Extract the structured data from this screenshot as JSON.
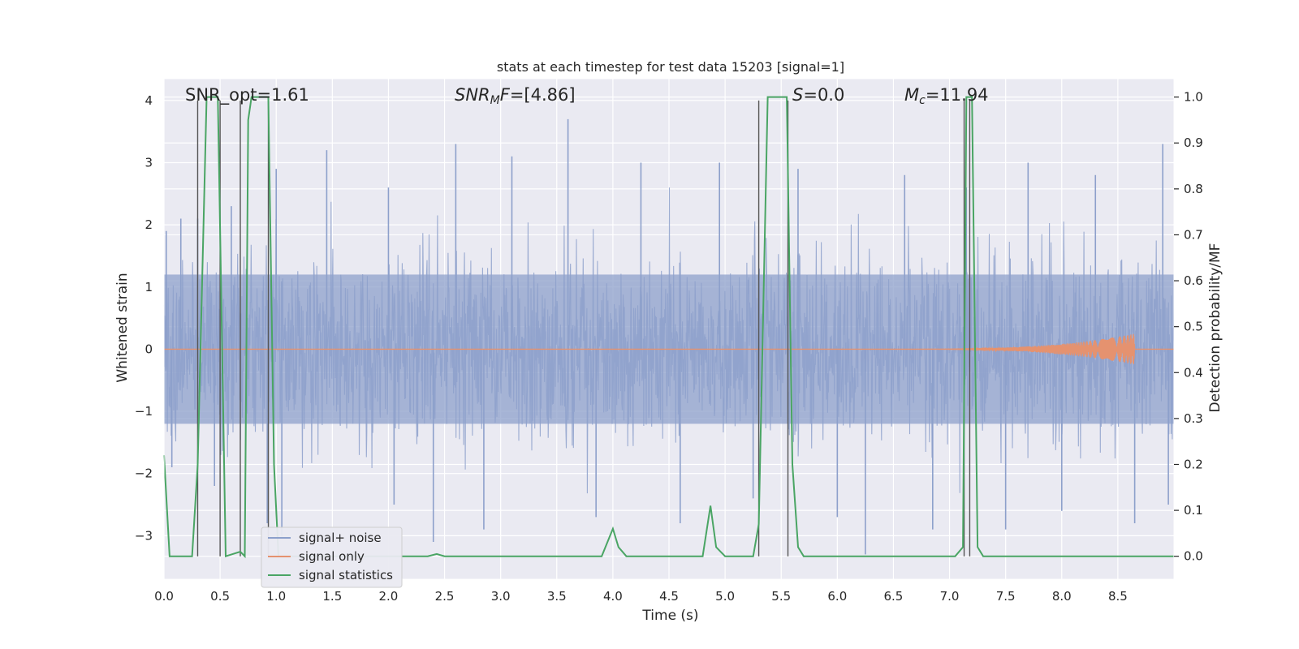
{
  "chart_data": {
    "type": "line",
    "title": "stats at each timestep for test data 15203 [signal=1]",
    "xlabel": "Time (s)",
    "ylabel_left": "Whitened strain",
    "ylabel_right": "Detection probability/MF",
    "xlim": [
      0.0,
      9.0
    ],
    "ylim_left": [
      -3.7,
      4.35
    ],
    "ylim_right": [
      -0.05,
      1.04
    ],
    "x_ticks": [
      "0.0",
      "0.5",
      "1.0",
      "1.5",
      "2.0",
      "2.5",
      "3.0",
      "3.5",
      "4.0",
      "4.5",
      "5.0",
      "5.5",
      "6.0",
      "6.5",
      "7.0",
      "7.5",
      "8.0",
      "8.5"
    ],
    "y_left_ticks": [
      "−3",
      "−2",
      "−1",
      "0",
      "1",
      "2",
      "3",
      "4"
    ],
    "y_right_ticks": [
      "0.0",
      "0.1",
      "0.2",
      "0.3",
      "0.4",
      "0.5",
      "0.6",
      "0.7",
      "0.8",
      "0.9",
      "1.0"
    ],
    "grid": true,
    "legend_position": "lower-left",
    "annotations": {
      "snr_opt": "SNR_opt=1.61",
      "snr_mf": "=[4.86]",
      "s": "=0.0",
      "mc": "=11.94"
    },
    "series": [
      {
        "name": "signal+ noise",
        "color": "#8da0cb",
        "description_axis": "left",
        "envelope_percentiles": {
          "p5": -1.2,
          "p95": 1.2
        },
        "peak_samples": [
          [
            0.02,
            1.9
          ],
          [
            0.07,
            -1.9
          ],
          [
            0.15,
            2.1
          ],
          [
            0.3,
            2.1
          ],
          [
            0.45,
            -2.2
          ],
          [
            0.6,
            2.3
          ],
          [
            0.92,
            -2.8
          ],
          [
            1.0,
            2.9
          ],
          [
            1.05,
            -3.0
          ],
          [
            1.45,
            3.2
          ],
          [
            2.0,
            2.6
          ],
          [
            2.05,
            -2.5
          ],
          [
            2.4,
            -3.1
          ],
          [
            2.6,
            3.3
          ],
          [
            2.85,
            -2.9
          ],
          [
            3.1,
            3.1
          ],
          [
            3.6,
            3.7
          ],
          [
            3.85,
            -2.7
          ],
          [
            4.25,
            3.0
          ],
          [
            4.6,
            -2.8
          ],
          [
            4.95,
            3.0
          ],
          [
            5.25,
            -2.4
          ],
          [
            5.65,
            2.9
          ],
          [
            6.0,
            -2.7
          ],
          [
            6.25,
            -3.3
          ],
          [
            6.6,
            2.8
          ],
          [
            6.85,
            -2.9
          ],
          [
            7.15,
            2.6
          ],
          [
            7.5,
            -2.9
          ],
          [
            7.7,
            3.0
          ],
          [
            8.0,
            -2.6
          ],
          [
            8.3,
            2.8
          ],
          [
            8.65,
            -2.8
          ],
          [
            8.9,
            3.3
          ],
          [
            8.95,
            -2.5
          ]
        ]
      },
      {
        "name": "signal only",
        "color": "#e5926f",
        "description_axis": "left",
        "chirp_start": 6.5,
        "chirp_peak_time": 8.65,
        "chirp_peak_amplitude": 0.25
      },
      {
        "name": "signal statistics",
        "color": "#4aa564",
        "description_axis": "right",
        "points": [
          [
            0.0,
            0.22
          ],
          [
            0.05,
            0.0
          ],
          [
            0.25,
            0.0
          ],
          [
            0.3,
            0.2
          ],
          [
            0.38,
            1.0
          ],
          [
            0.48,
            1.0
          ],
          [
            0.55,
            0.0
          ],
          [
            0.68,
            0.01
          ],
          [
            0.72,
            0.0
          ],
          [
            0.75,
            0.95
          ],
          [
            0.78,
            1.0
          ],
          [
            0.93,
            1.0
          ],
          [
            0.98,
            0.2
          ],
          [
            1.02,
            0.0
          ],
          [
            2.35,
            0.0
          ],
          [
            2.43,
            0.005
          ],
          [
            2.5,
            0.0
          ],
          [
            3.9,
            0.0
          ],
          [
            4.0,
            0.06
          ],
          [
            4.05,
            0.02
          ],
          [
            4.12,
            0.0
          ],
          [
            4.8,
            0.0
          ],
          [
            4.87,
            0.11
          ],
          [
            4.92,
            0.02
          ],
          [
            5.0,
            0.0
          ],
          [
            5.25,
            0.0
          ],
          [
            5.3,
            0.07
          ],
          [
            5.38,
            1.0
          ],
          [
            5.55,
            1.0
          ],
          [
            5.6,
            0.2
          ],
          [
            5.65,
            0.02
          ],
          [
            5.7,
            0.0
          ],
          [
            7.05,
            0.0
          ],
          [
            7.12,
            0.02
          ],
          [
            7.15,
            1.0
          ],
          [
            7.2,
            1.0
          ],
          [
            7.25,
            0.02
          ],
          [
            7.3,
            0.0
          ],
          [
            9.0,
            0.0
          ]
        ]
      }
    ],
    "event_markers": [
      0.3,
      0.5,
      0.68,
      0.93,
      5.3,
      5.56,
      7.13,
      7.18
    ]
  }
}
